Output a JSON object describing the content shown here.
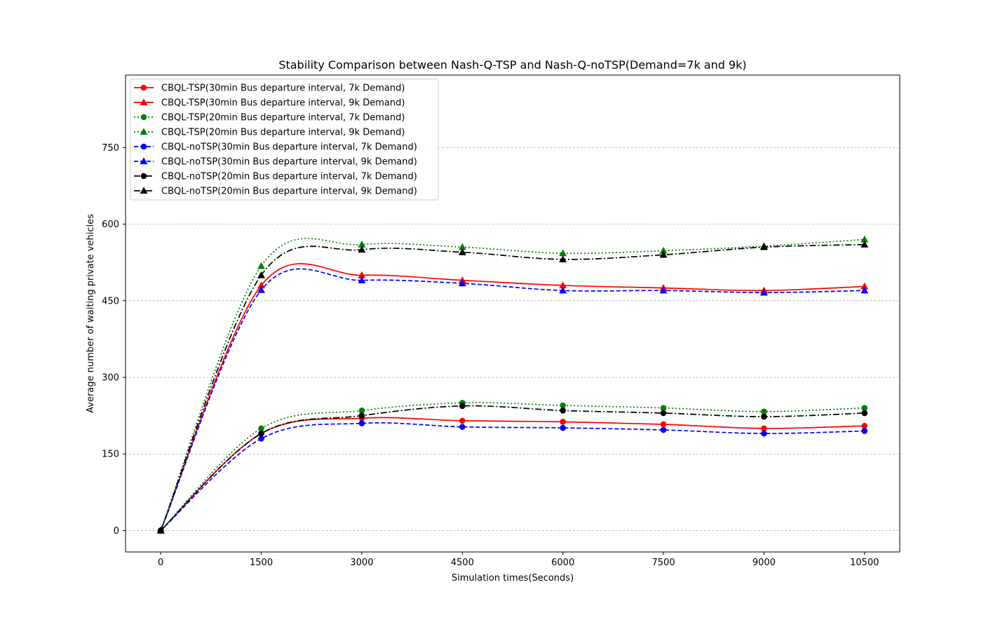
{
  "chart_data": {
    "type": "line",
    "title": "Stability Comparison between Nash-Q-TSP and Nash-Q-noTSP(Demand=7k and 9k)",
    "xlabel": "Simulation times(Seconds)",
    "ylabel": "Average number of waiting private vehicles",
    "x": [
      0,
      1500,
      3000,
      4500,
      6000,
      7500,
      9000,
      10500
    ],
    "xticks": [
      0,
      1500,
      3000,
      4500,
      6000,
      7500,
      9000,
      10500
    ],
    "yticks": [
      0,
      150,
      300,
      450,
      600,
      750
    ],
    "xlim": [
      -525,
      11025
    ],
    "ylim": [
      -42,
      892
    ],
    "grid": "y-dashed",
    "legend_position": "upper-left",
    "series": [
      {
        "name": "CBQL-TSP(30min Bus departure interval, 7k Demand)",
        "color": "#ff0000",
        "dash": "solid",
        "marker": "circle",
        "values": [
          0,
          190,
          220,
          215,
          213,
          208,
          200,
          205
        ]
      },
      {
        "name": "CBQL-TSP(30min Bus departure interval, 9k Demand)",
        "color": "#ff0000",
        "dash": "solid",
        "marker": "triangle",
        "values": [
          0,
          480,
          500,
          490,
          480,
          475,
          470,
          478
        ]
      },
      {
        "name": "CBQL-TSP(20min Bus departure interval, 7k Demand)",
        "color": "#008000",
        "dash": "dotted",
        "marker": "circle",
        "values": [
          0,
          200,
          235,
          250,
          245,
          240,
          233,
          240
        ]
      },
      {
        "name": "CBQL-TSP(20min Bus departure interval, 9k Demand)",
        "color": "#008000",
        "dash": "dotted",
        "marker": "triangle",
        "values": [
          0,
          518,
          560,
          555,
          543,
          548,
          557,
          570
        ]
      },
      {
        "name": "CBQL-noTSP(30min Bus departure interval, 7k Demand)",
        "color": "#0000ff",
        "dash": "dashed",
        "marker": "circle",
        "values": [
          0,
          180,
          210,
          203,
          201,
          197,
          190,
          195
        ]
      },
      {
        "name": "CBQL-noTSP(30min Bus departure interval, 9k Demand)",
        "color": "#0000ff",
        "dash": "dashed",
        "marker": "triangle",
        "values": [
          0,
          471,
          490,
          484,
          470,
          470,
          466,
          470
        ]
      },
      {
        "name": "CBQL-noTSP(20min Bus departure interval, 7k Demand)",
        "color": "#000000",
        "dash": "dashdot",
        "marker": "circle",
        "values": [
          0,
          190,
          225,
          244,
          235,
          230,
          223,
          230
        ]
      },
      {
        "name": "CBQL-noTSP(20min Bus departure interval, 9k Demand)",
        "color": "#000000",
        "dash": "dashdot",
        "marker": "triangle",
        "values": [
          0,
          500,
          550,
          545,
          531,
          540,
          555,
          560
        ]
      }
    ]
  }
}
